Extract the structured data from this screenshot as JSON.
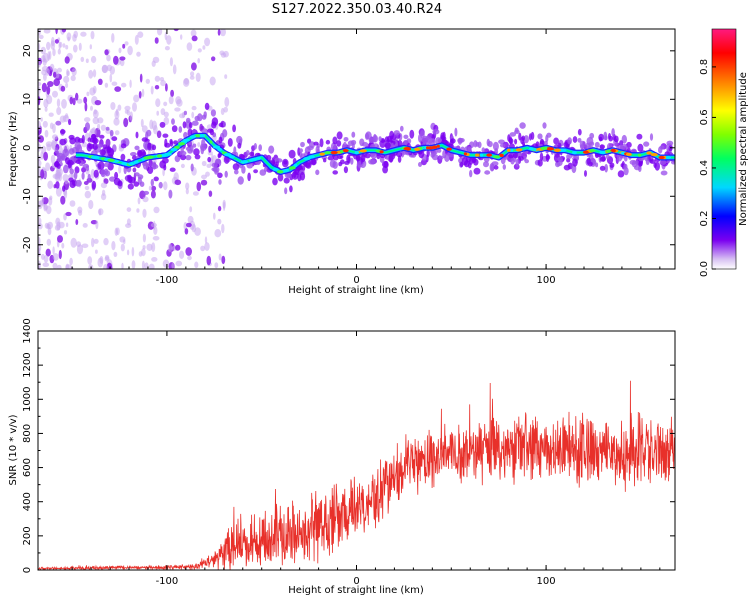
{
  "title": "S127.2022.350.03.40.R24",
  "chart_data": [
    {
      "type": "heatmap",
      "xlabel": "Height of straight line (km)",
      "ylabel": "Frequency (Hz)",
      "xlim": [
        -168,
        168
      ],
      "ylim": [
        -25,
        24.5
      ],
      "xticks": [
        -100,
        0,
        100
      ],
      "yticks": [
        -20,
        -10,
        0,
        10,
        20
      ],
      "ridge": {
        "x": [
          -145,
          -130,
          -120,
          -110,
          -100,
          -95,
          -90,
          -85,
          -80,
          -75,
          -70,
          -65,
          -60,
          -55,
          -50,
          -45,
          -40,
          -35,
          -30,
          -25,
          -20,
          -15,
          -10,
          -5,
          0,
          5,
          10,
          15,
          20,
          25,
          30,
          35,
          40,
          45,
          50,
          55,
          60,
          65,
          70,
          75,
          80,
          85,
          90,
          95,
          100,
          105,
          110,
          115,
          120,
          125,
          130,
          135,
          140,
          145,
          150,
          155,
          160,
          165
        ],
        "y": [
          -1.5,
          -2.5,
          -3.5,
          -2.0,
          -1.5,
          0.0,
          1.5,
          2.5,
          2.5,
          0.5,
          -1.0,
          -2.0,
          -3.0,
          -2.5,
          -2.0,
          -4.0,
          -5.0,
          -4.5,
          -3.0,
          -2.0,
          -1.5,
          -1.0,
          -1.0,
          -0.5,
          -1.0,
          -0.5,
          -0.5,
          -1.0,
          -0.5,
          0.0,
          -0.5,
          0.0,
          0.0,
          0.5,
          -0.5,
          -1.0,
          -1.5,
          -1.5,
          -1.5,
          -2.0,
          -0.5,
          -0.5,
          0.0,
          -0.5,
          0.0,
          -0.5,
          -0.5,
          -1.0,
          -1.0,
          -0.5,
          -1.0,
          -0.5,
          -1.0,
          -1.5,
          -1.5,
          -1.0,
          -2.0,
          -2.0
        ]
      },
      "colorbar": {
        "label": "Normalized spectral amplitude",
        "range": [
          0,
          0.95
        ],
        "ticks": [
          "0.0",
          "0.2",
          "0.4",
          "0.6",
          "0.8"
        ]
      }
    },
    {
      "type": "line",
      "xlabel": "Height of straight line (km)",
      "ylabel": "SNR (10 * v/v)",
      "xlim": [
        -168,
        168
      ],
      "ylim": [
        0,
        1400
      ],
      "xticks": [
        -100,
        0,
        100
      ],
      "yticks": [
        0,
        200,
        400,
        600,
        800,
        1000,
        1200,
        1400
      ],
      "color": "#e8302a",
      "envelope": {
        "x": [
          -168,
          -140,
          -120,
          -100,
          -85,
          -75,
          -70,
          -65,
          -60,
          -50,
          -45,
          -40,
          -30,
          -25,
          -20,
          -10,
          0,
          5,
          10,
          20,
          30,
          50,
          70,
          90,
          110,
          130,
          150,
          168
        ],
        "mean": [
          8,
          12,
          15,
          15,
          20,
          60,
          100,
          150,
          160,
          160,
          200,
          230,
          230,
          240,
          260,
          300,
          380,
          400,
          430,
          560,
          640,
          680,
          700,
          710,
          700,
          700,
          700,
          700
        ],
        "spread": [
          6,
          8,
          10,
          10,
          15,
          50,
          90,
          130,
          140,
          130,
          140,
          160,
          160,
          170,
          170,
          160,
          150,
          150,
          170,
          150,
          150,
          150,
          160,
          170,
          170,
          170,
          180,
          160
        ]
      }
    }
  ]
}
